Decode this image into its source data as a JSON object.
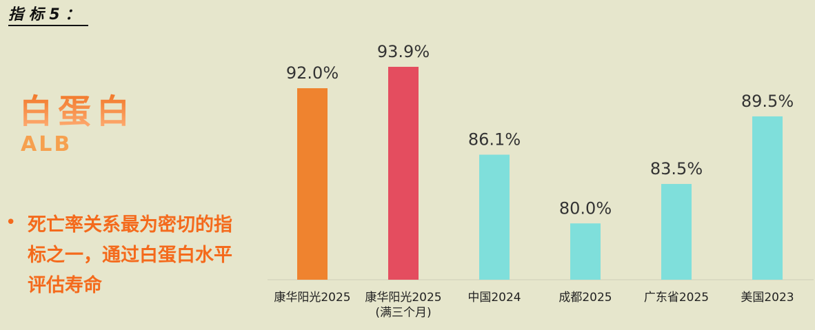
{
  "header": {
    "title": "指 标 5 ："
  },
  "slide": {
    "heading": "白蛋白",
    "subheading": "ALB",
    "bullet": "死亡率关系最为密切的指标之一，通过白蛋白水平评估寿命"
  },
  "chart_data": {
    "type": "bar",
    "categories": [
      "康华阳光2025",
      "康华阳光2025\n(满三个月)",
      "中国2024",
      "成都2025",
      "广东省2025",
      "美国2023"
    ],
    "values": [
      92.0,
      93.9,
      86.1,
      80.0,
      83.5,
      89.5
    ],
    "value_labels": [
      "92.0%",
      "93.9%",
      "86.1%",
      "80.0%",
      "83.5%",
      "89.5%"
    ],
    "colors": [
      "#ef832f",
      "#e44d5f",
      "#7fdfdb",
      "#7fdfdb",
      "#7fdfdb",
      "#7fdfdb"
    ],
    "ylim": [
      75,
      95
    ]
  }
}
